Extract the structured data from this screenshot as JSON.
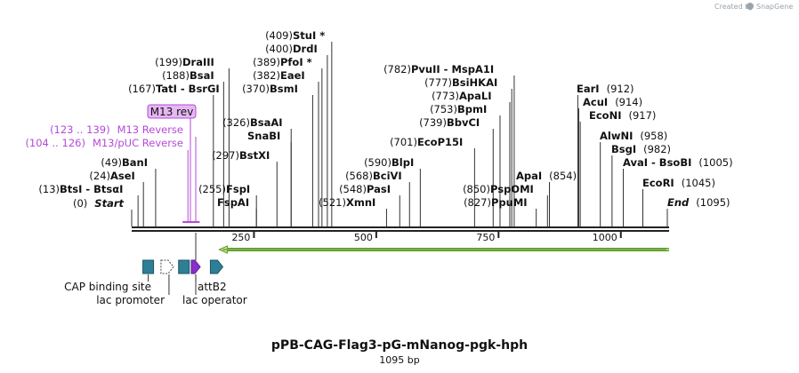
{
  "map": {
    "title": "pPB-CAG-Flag3-pG-mNanog-pgk-hph",
    "length_label": "1095 bp",
    "sequence_length": 1095,
    "watermark": "Created by",
    "watermark_brand": "SnapGene",
    "colors": {
      "backbone": "#222222",
      "primer": "#b44ad6",
      "primer_box": "#e5b8f2",
      "orf_fill": "#c8ee9a",
      "orf_stroke": "#5a9a1c",
      "cap_fill": "#2d7f96",
      "lac_op_fill": "#8b2fcc"
    }
  },
  "axis_ticks": [
    {
      "pos": 250,
      "label": "250"
    },
    {
      "pos": 500,
      "label": "500"
    },
    {
      "pos": 750,
      "label": "750"
    },
    {
      "pos": 1000,
      "label": "1000"
    }
  ],
  "left_sites": [
    {
      "num": "(409)",
      "name": "StuI *",
      "pos": 409
    },
    {
      "num": "(400)",
      "name": "DrdI",
      "pos": 400
    },
    {
      "num": "(389)",
      "name": "PfoI *",
      "pos": 389
    },
    {
      "num": "(382)",
      "name": "EaeI",
      "pos": 382
    },
    {
      "num": "(370)",
      "name": "BsmI",
      "pos": 370
    },
    {
      "num": "(199)",
      "name": "DraIII",
      "pos": 199
    },
    {
      "num": "(188)",
      "name": "BsaI",
      "pos": 188
    },
    {
      "num": "(167)",
      "name": "TatI  -  BsrGI",
      "pos": 167
    },
    {
      "num": "(326)",
      "name": "BsaAI",
      "pos": 326
    },
    {
      "num": "",
      "name": "SnaBI",
      "pos": 326
    },
    {
      "num": "(297)",
      "name": "BstXI",
      "pos": 297
    },
    {
      "num": "(49)",
      "name": "BanI",
      "pos": 49
    },
    {
      "num": "(24)",
      "name": "AseI",
      "pos": 24
    },
    {
      "num": "(13)",
      "name": "BtsI  -  BtsαI",
      "pos": 13
    },
    {
      "num": "(255)",
      "name": "FspI",
      "pos": 255
    },
    {
      "num": "",
      "name": "FspAI",
      "pos": 255
    },
    {
      "num": "(521)",
      "name": "XmnI",
      "pos": 521
    },
    {
      "num": "(548)",
      "name": "PasI",
      "pos": 548
    },
    {
      "num": "(568)",
      "name": "BciVI",
      "pos": 568
    },
    {
      "num": "(590)",
      "name": "BlpI",
      "pos": 590
    },
    {
      "num": "(701)",
      "name": "EcoP15I",
      "pos": 701
    },
    {
      "num": "(739)",
      "name": "BbvCI",
      "pos": 739
    },
    {
      "num": "(753)",
      "name": "BpmI",
      "pos": 753
    },
    {
      "num": "(773)",
      "name": "ApaLI",
      "pos": 773
    },
    {
      "num": "(777)",
      "name": "BsiHKAI",
      "pos": 777
    },
    {
      "num": "(782)",
      "name": "PvuII   -  MspA1I",
      "pos": 782
    },
    {
      "num": "(850)",
      "name": "PspOMI",
      "pos": 850
    },
    {
      "num": "(827)",
      "name": "PpuMI",
      "pos": 827
    }
  ],
  "right_sites": [
    {
      "num": "(912)",
      "name": "EarI",
      "pos": 912
    },
    {
      "num": "(914)",
      "name": "AcuI",
      "pos": 914
    },
    {
      "num": "(917)",
      "name": "EcoNI",
      "pos": 917
    },
    {
      "num": "(958)",
      "name": "AlwNI",
      "pos": 958
    },
    {
      "num": "(982)",
      "name": "BsgI",
      "pos": 982
    },
    {
      "num": "(1005)",
      "name": "AvaI  -  BsoBI",
      "pos": 1005
    },
    {
      "num": "(1045)",
      "name": "EcoRI",
      "pos": 1045
    },
    {
      "num": "(854)",
      "name": "ApaI",
      "pos": 854
    },
    {
      "num": "(1095)",
      "name": "End",
      "pos": 1095,
      "special": true
    }
  ],
  "start_site": {
    "num": "(0)",
    "name": "Start",
    "pos": 0
  },
  "primers": [
    {
      "range": "(123 .. 139)",
      "name": "M13 Reverse",
      "start": 123,
      "end": 139
    },
    {
      "range": "(104 .. 126)",
      "name": "M13/pUC Reverse",
      "start": 104,
      "end": 126
    }
  ],
  "primer_box_label": "M13 rev",
  "features": [
    {
      "name": "CAP binding site",
      "type": "cap",
      "pos": 32
    },
    {
      "name": "lac promoter",
      "type": "promoter",
      "pos": 69
    },
    {
      "name": "",
      "type": "cap2",
      "pos": 105
    },
    {
      "name": "lac operator",
      "type": "operator",
      "pos": 131
    },
    {
      "name": "attB2",
      "type": "attb",
      "pos": 170
    }
  ],
  "orf": {
    "start": 190,
    "end": 1090,
    "direction": "reverse"
  }
}
